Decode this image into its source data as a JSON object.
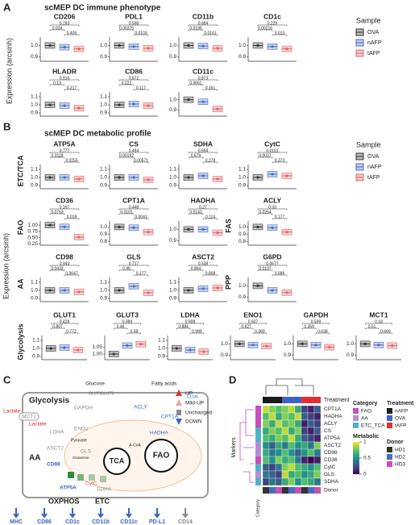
{
  "legend": {
    "title": "Sample",
    "items": [
      {
        "name": "OVA",
        "color": "#333333"
      },
      {
        "name": "nAFP",
        "color": "#4a6cc0"
      },
      {
        "name": "tAFP",
        "color": "#e06666"
      }
    ]
  },
  "panel_a": {
    "label": "A",
    "title": "scMEP DC immune phenotype",
    "ylabel": "Expression (arcsinh)",
    "plots": [
      {
        "title": "CD206",
        "ylim": [
          0.86,
          1.06
        ],
        "yticks": [
          0.9,
          {
            "value": 1,
            "label": "1.0"
          }
        ],
        "values": [
          1.0,
          0.985,
          0.97
        ],
        "pvalues": [
          "0.193",
          "0.034",
          "0.405"
        ]
      },
      {
        "title": "PDL1",
        "ylim": [
          0.86,
          1.06
        ],
        "yticks": [
          0.9,
          {
            "value": 1,
            "label": "1.0"
          }
        ],
        "values": [
          1.0,
          0.99,
          0.975
        ],
        "pvalues": [
          "0.598",
          "0.00376",
          "0.0103"
        ]
      },
      {
        "title": "CD11b",
        "ylim": [
          0.86,
          1.06
        ],
        "yticks": [
          0.9,
          {
            "value": 1,
            "label": "1.0"
          }
        ],
        "values": [
          1.0,
          0.995,
          0.975
        ],
        "pvalues": [
          "0.684",
          "0.0195",
          "0.0161"
        ]
      },
      {
        "title": "CD1c",
        "ylim": [
          0.86,
          1.06
        ],
        "yticks": [
          0.9,
          {
            "value": 1,
            "label": "1.0"
          }
        ],
        "values": [
          1.0,
          0.99,
          0.97
        ],
        "pvalues": [
          "0.229",
          "0.00216",
          "0.013"
        ]
      },
      {
        "title": "HLADR",
        "ylim": [
          0.86,
          1.14
        ],
        "yticks": [
          0.9,
          {
            "value": 1,
            "label": "1.0"
          },
          1.1
        ],
        "values": [
          1.0,
          0.99,
          0.96
        ],
        "pvalues": [
          "0.916",
          "0.13",
          "0.217"
        ]
      },
      {
        "title": "CD86",
        "ylim": [
          0.86,
          1.14
        ],
        "yticks": [
          0.9,
          {
            "value": 1,
            "label": "1.0"
          },
          1.1
        ],
        "values": [
          1.0,
          1.01,
          0.99
        ],
        "pvalues": [
          "0.872",
          "0.222",
          "0.117"
        ]
      },
      {
        "title": "CD11c",
        "ylim": [
          0.84,
          1.06
        ],
        "yticks": [
          0.9,
          {
            "value": 1,
            "label": "1.0"
          }
        ],
        "values": [
          1.0,
          0.98,
          0.91
        ],
        "pvalues": [
          "0.873",
          "0.0661",
          "0.161"
        ]
      }
    ]
  },
  "panel_b": {
    "label": "B",
    "title": "scMEP DC metabolic profile",
    "ylabel": "Expression (arcsinh)",
    "row_labels": [
      "ETC/TCA",
      "FAO",
      "AA",
      "Glycolysis"
    ],
    "plots": [
      {
        "title": "ATP5A",
        "ylim": [
          0.86,
          1.14
        ],
        "yticks": [
          0.9,
          {
            "value": 1,
            "label": "1.0"
          },
          1.1
        ],
        "values": [
          1.0,
          1.0,
          0.98
        ],
        "pvalues": [
          "0.777",
          "0.0118",
          "0.0255"
        ]
      },
      {
        "title": "CS",
        "ylim": [
          0.86,
          1.14
        ],
        "yticks": [
          0.9,
          {
            "value": 1,
            "label": "1.0"
          },
          1.1
        ],
        "values": [
          1.0,
          1.0,
          0.97
        ],
        "pvalues": [
          "0.494",
          "0.00192",
          "0.00571"
        ]
      },
      {
        "title": "SDHA",
        "ylim": [
          0.86,
          1.14
        ],
        "yticks": [
          0.9,
          {
            "value": 1,
            "label": "1.0"
          },
          1.1
        ],
        "values": [
          1.0,
          1.02,
          0.98
        ],
        "pvalues": [
          "0.694",
          "0.679",
          "0.278"
        ]
      },
      {
        "title": "CytC",
        "ylim": [
          0.86,
          1.14
        ],
        "yticks": [
          0.9,
          {
            "value": 1,
            "label": "1.0"
          },
          1.1
        ],
        "values": [
          1.0,
          1.04,
          1.02
        ],
        "pvalues": [
          "0.0101",
          "0.0037",
          "0.373"
        ]
      },
      {
        "title": "CD36",
        "ylim": [
          0.2,
          1.1
        ],
        "yticks": [
          0.25,
          {
            "value": 0.5,
            "label": "0.50"
          },
          0.75,
          {
            "value": 1,
            "label": "1.00"
          }
        ],
        "values": [
          1.0,
          0.93,
          0.52
        ],
        "pvalues": [
          "0.167",
          "0.0763",
          "0.018"
        ]
      },
      {
        "title": "CPT1A",
        "ylim": [
          0.75,
          1.06
        ],
        "yticks": [
          0.8,
          0.9,
          {
            "value": 1,
            "label": "1.0"
          }
        ],
        "values": [
          1.0,
          0.99,
          0.93
        ],
        "pvalues": [
          "0.448",
          "0.0101",
          "0.0041"
        ]
      },
      {
        "title": "HADHA",
        "ylim": [
          0.86,
          1.06
        ],
        "yticks": [
          0.9,
          {
            "value": 1,
            "label": "1.0"
          }
        ],
        "values": [
          1.0,
          1.0,
          0.97
        ],
        "pvalues": [
          "0.27",
          "0.0143",
          "0.114"
        ]
      },
      {
        "title": "ACLY",
        "side_label": "FAS",
        "ylim": [
          0.75,
          1.06
        ],
        "yticks": [
          0.8,
          0.9,
          {
            "value": 1,
            "label": "1.0"
          }
        ],
        "values": [
          1.0,
          0.99,
          0.93
        ],
        "pvalues": [
          "0.33",
          "0.0254",
          "0.177"
        ]
      },
      {
        "title": "CD98",
        "ylim": [
          0.86,
          1.14
        ],
        "yticks": [
          0.9,
          {
            "value": 1,
            "label": "1.0"
          },
          1.1
        ],
        "values": [
          1.0,
          1.0,
          0.98
        ],
        "pvalues": [
          "0.943",
          "0.0432",
          "0.0647"
        ]
      },
      {
        "title": "GLS",
        "ylim": [
          0.86,
          1.14
        ],
        "yticks": [
          0.9,
          {
            "value": 1,
            "label": "1.0"
          },
          1.1
        ],
        "values": [
          1.0,
          1.05,
          0.97
        ],
        "pvalues": [
          "0.717",
          "0.46",
          "0.177"
        ]
      },
      {
        "title": "ASCT2",
        "ylim": [
          0.86,
          1.14
        ],
        "yticks": [
          0.9,
          {
            "value": 1,
            "label": "1.0"
          },
          1.1
        ],
        "values": [
          1.0,
          1.02,
          1.03
        ],
        "pvalues": [
          "0.538",
          "0.864",
          "0.858"
        ]
      },
      {
        "title": "G6PD",
        "side_label": "PPP",
        "ylim": [
          0.86,
          1.06
        ],
        "yticks": [
          0.9,
          {
            "value": 1,
            "label": "1.0"
          }
        ],
        "values": [
          1.0,
          0.96,
          0.94
        ],
        "pvalues": [
          "0.0677",
          "0.0107",
          "0.586"
        ]
      },
      {
        "title": "GLUT1",
        "ylim": [
          0.86,
          1.14
        ],
        "yticks": [
          0.9,
          {
            "value": 1,
            "label": "1.0"
          },
          1.1
        ],
        "values": [
          1.0,
          1.01,
          0.98
        ],
        "pvalues": [
          "0.428",
          "0.807",
          "0.772"
        ]
      },
      {
        "title": "GLUT3",
        "ylim": [
          0.96,
          1.12
        ],
        "yticks": [
          {
            "value": 1,
            "label": "1.00"
          },
          1.05
        ],
        "values": [
          1.0,
          1.06,
          1.07
        ],
        "pvalues": [
          "0.989",
          "0.46",
          "0.58"
        ]
      },
      {
        "title": "LDHA",
        "ylim": [
          0.86,
          1.14
        ],
        "yticks": [
          0.9,
          {
            "value": 1,
            "label": "1.0"
          },
          1.1
        ],
        "values": [
          1.0,
          0.98,
          0.96
        ],
        "pvalues": [
          "0.908",
          "0.884",
          "0.989"
        ]
      },
      {
        "title": "ENO1",
        "ylim": [
          0.86,
          1.06
        ],
        "yticks": [
          0.9,
          {
            "value": 1,
            "label": "1.0"
          }
        ],
        "values": [
          1.0,
          0.99,
          0.98
        ],
        "pvalues": [
          "0.607",
          "0.627",
          "0.369"
        ]
      },
      {
        "title": "GAPDH",
        "ylim": [
          0.86,
          1.06
        ],
        "yticks": [
          0.9,
          {
            "value": 1,
            "label": "1.0"
          }
        ],
        "values": [
          1.0,
          0.99,
          0.97
        ],
        "pvalues": [
          "0.599",
          "0.359",
          "0.638"
        ]
      },
      {
        "title": "MCT1",
        "ylim": [
          0.86,
          1.06
        ],
        "yticks": [
          0.9,
          {
            "value": 1,
            "label": "1.0"
          }
        ],
        "values": [
          1.0,
          0.99,
          0.985
        ],
        "pvalues": [
          "0.18",
          "0.51",
          "0.669"
        ]
      }
    ]
  },
  "panel_c": {
    "label": "C",
    "glucose": "Glucose",
    "fatty_acids": "Fatty acids",
    "glycolysis": "Glycolysis",
    "lactate": "Lactate",
    "mct1": "MCT1",
    "gapdh": "GAPDH",
    "ldha": "LDHA",
    "eno1": "ENO1",
    "pyruvate": "Pyruvate",
    "glut1": "GLUT1",
    "glut3": "GLUT3",
    "cd36": "CD36",
    "acly": "ACLY",
    "cpt1a": "CPT1A",
    "hadha": "HADHA",
    "acoa": "A-CoA",
    "tca": "TCA",
    "fao": "FAO",
    "aa": "AA",
    "asct2": "ASCT2",
    "cd98": "CD98",
    "gls": "GLS",
    "glutamine": "Glutamine",
    "atp5a": "ATP5A",
    "cytc": "CytC",
    "sdha": "SDHA",
    "oxphos": "OXPHOS",
    "etc": "ETC",
    "legend": [
      "UP",
      "Mild-UP",
      "Unchanged",
      "DOWN"
    ],
    "markers": [
      "MHC",
      "CD86",
      "CD1c",
      "CD11b",
      "CD11c",
      "PD-L1",
      "CD14"
    ]
  },
  "panel_d": {
    "label": "D",
    "treatment_label": "Treatment",
    "markers_label": "Markers",
    "category_label": "Category",
    "donor_label": "Donor",
    "rows": [
      {
        "name": "CPT1A",
        "values": [
          0.9,
          0.8,
          0.7,
          0.8,
          0.9,
          0.6,
          0.2,
          0.1,
          0.3
        ]
      },
      {
        "name": "HADHA",
        "values": [
          0.7,
          0.9,
          0.6,
          0.8,
          0.7,
          0.9,
          0.3,
          0.2,
          0.1
        ]
      },
      {
        "name": "ACLY",
        "values": [
          0.8,
          0.6,
          0.9,
          0.7,
          0.8,
          0.6,
          0.1,
          0.3,
          0.2
        ]
      },
      {
        "name": "CS",
        "values": [
          0.6,
          0.8,
          0.7,
          0.9,
          0.6,
          0.8,
          0.2,
          0.1,
          0.3
        ]
      },
      {
        "name": "ATP5A",
        "values": [
          0.7,
          0.6,
          0.8,
          0.7,
          0.9,
          0.6,
          0.3,
          0.2,
          0.1
        ]
      },
      {
        "name": "ASCT2",
        "values": [
          0.5,
          0.3,
          0.6,
          0.4,
          0.7,
          0.5,
          0.6,
          0.4,
          0.8
        ]
      },
      {
        "name": "CD98",
        "values": [
          0.6,
          0.4,
          0.5,
          0.7,
          0.5,
          0.3,
          0.5,
          0.7,
          0.4
        ]
      },
      {
        "name": "CD36",
        "values": [
          0.7,
          0.5,
          0.8,
          0.6,
          0.7,
          0.4,
          0.1,
          0.0,
          0.1
        ]
      },
      {
        "name": "CytC",
        "values": [
          0.3,
          0.2,
          0.4,
          0.8,
          0.9,
          0.7,
          0.6,
          0.5,
          0.7
        ]
      },
      {
        "name": "GLS",
        "values": [
          0.4,
          0.3,
          0.2,
          0.9,
          0.6,
          0.7,
          0.5,
          0.6,
          0.8
        ]
      },
      {
        "name": "SDHA",
        "values": [
          0.2,
          0.4,
          0.3,
          0.6,
          0.8,
          0.5,
          0.7,
          0.6,
          0.4
        ]
      }
    ],
    "category_legend": {
      "title": "Category",
      "items": [
        {
          "name": "FAO",
          "color": "#c64fb8"
        },
        {
          "name": "AA",
          "color": "#b18fd8"
        },
        {
          "name": "ETC_TCA",
          "color": "#4fb3c4"
        }
      ]
    },
    "treatment_legend": {
      "title": "Treatment",
      "items": [
        {
          "name": "nAFP",
          "color": "#1a1a1a"
        },
        {
          "name": "OVA",
          "color": "#3a63c4"
        },
        {
          "name": "tAFP",
          "color": "#e03030"
        }
      ]
    },
    "metabolic_legend": {
      "title": "Metabolic",
      "ticks": [
        0,
        0.5,
        1
      ]
    },
    "donor_legend": {
      "title": "Donor",
      "items": [
        {
          "name": "HD1",
          "color": "#333333"
        },
        {
          "name": "HD2",
          "color": "#4a6cc0"
        },
        {
          "name": "HD3",
          "color": "#c64fb8"
        }
      ]
    }
  }
}
